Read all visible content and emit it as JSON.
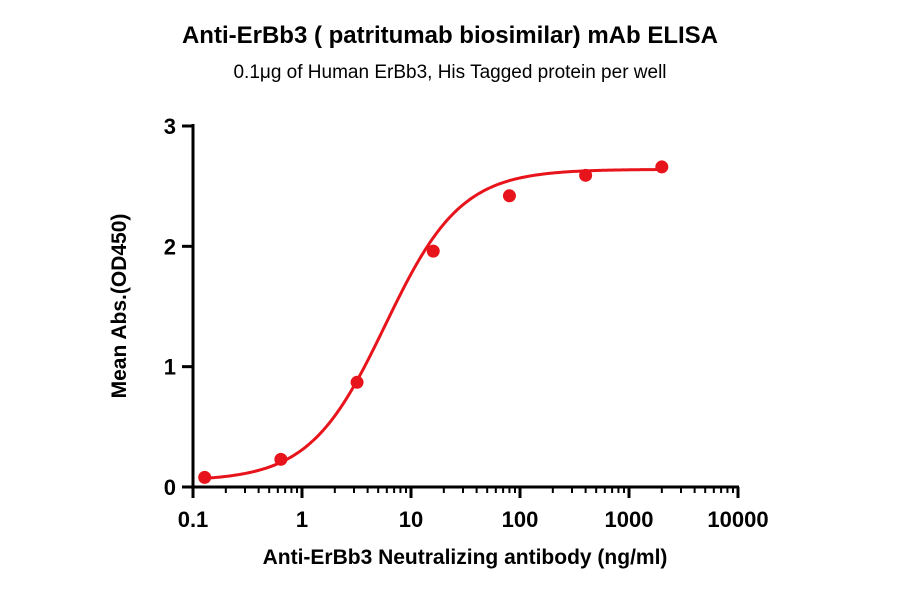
{
  "chart_data": {
    "type": "scatter",
    "title": "Anti-ErBb3 ( patritumab biosimilar) mAb ELISA",
    "subtitle": "0.1μg of Human ErBb3, His Tagged protein per well",
    "xlabel": "Anti-ErBb3 Neutralizing antibody (ng/ml)",
    "ylabel": "Mean Abs.(OD450)",
    "x_scale": "log",
    "xlim": [
      0.1,
      10000
    ],
    "ylim": [
      0,
      3
    ],
    "x_ticks": [
      0.1,
      1,
      10,
      100,
      1000,
      10000
    ],
    "x_tick_labels": [
      "0.1",
      "1",
      "10",
      "100",
      "1000",
      "10000"
    ],
    "y_ticks": [
      0,
      1,
      2,
      3
    ],
    "y_tick_labels": [
      "0",
      "1",
      "2",
      "3"
    ],
    "grid": false,
    "legend": "none",
    "series": [
      {
        "x": [
          0.128,
          0.64,
          3.2,
          16,
          80,
          400,
          2000
        ],
        "y": [
          0.08,
          0.23,
          0.87,
          1.96,
          2.42,
          2.59,
          2.66
        ],
        "color": "#e8141b",
        "marker": "circle",
        "fit": "four-parameter logistic"
      }
    ]
  }
}
